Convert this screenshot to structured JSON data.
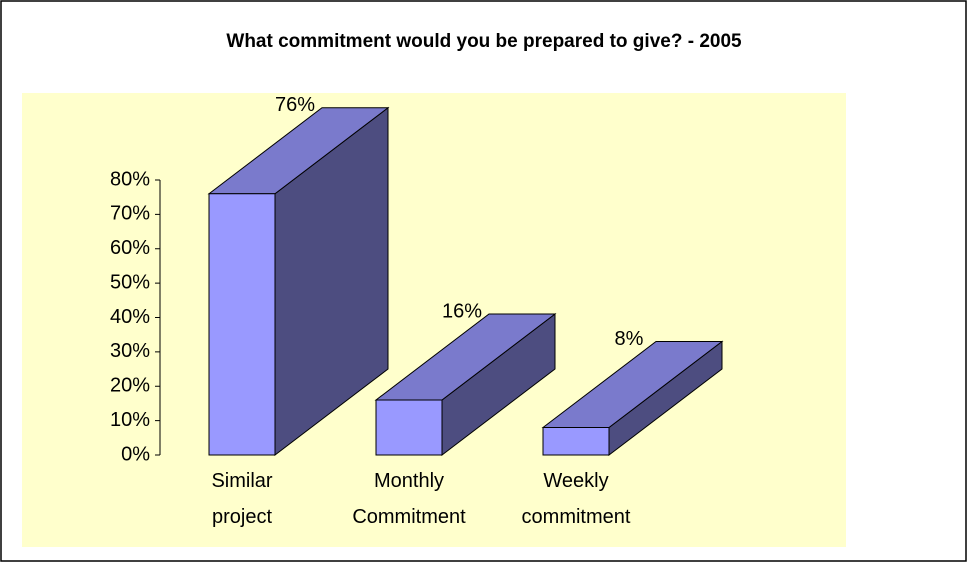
{
  "chart_data": {
    "type": "bar3d",
    "title": "What commitment would you be prepared to give? - 2005",
    "categories": [
      "Similar project",
      "Monthly Commitment",
      "Weekly commitment"
    ],
    "values": [
      76,
      16,
      8
    ],
    "value_labels": [
      "76%",
      "16%",
      "8%"
    ],
    "colors": {
      "front": "#9999ff",
      "top": "#7a7acc",
      "side": "#4d4d80"
    },
    "ylim": [
      0,
      80
    ],
    "yticks": [
      {
        "value": 0,
        "label": "0%"
      },
      {
        "value": 10,
        "label": "10%"
      },
      {
        "value": 20,
        "label": "20%"
      },
      {
        "value": 30,
        "label": "30%"
      },
      {
        "value": 40,
        "label": "40%"
      },
      {
        "value": 50,
        "label": "50%"
      },
      {
        "value": 60,
        "label": "60%"
      },
      {
        "value": 70,
        "label": "70%"
      },
      {
        "value": 80,
        "label": "80%"
      }
    ]
  }
}
